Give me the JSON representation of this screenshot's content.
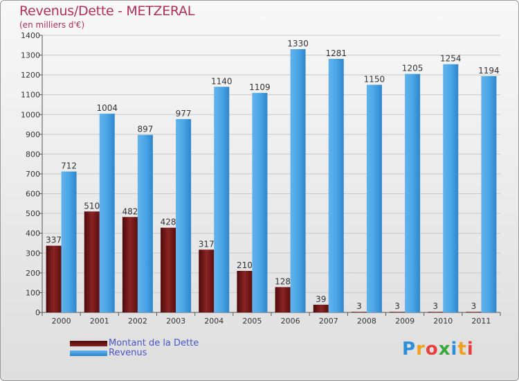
{
  "title": "Revenus/Dette - METZERAL",
  "subtitle": "(en milliers d'€)",
  "logo": {
    "letters": [
      "P",
      "r",
      "o",
      "x",
      "i",
      "t",
      "i"
    ],
    "colors": [
      "#2e8fd8",
      "#f0a020",
      "#e84040",
      "#3aa83a",
      "#2e8fd8",
      "#f0a020",
      "#e84040"
    ]
  },
  "chart_data": {
    "type": "bar",
    "categories": [
      "2000",
      "2001",
      "2002",
      "2003",
      "2004",
      "2005",
      "2006",
      "2007",
      "2008",
      "2009",
      "2010",
      "2011"
    ],
    "series": [
      {
        "name": "Montant de la Dette",
        "values": [
          337,
          510,
          482,
          428,
          317,
          210,
          128,
          39,
          3,
          3,
          3,
          3
        ],
        "color": "#7a1a1a"
      },
      {
        "name": "Revenus",
        "values": [
          712,
          1004,
          897,
          977,
          1140,
          1109,
          1330,
          1281,
          1150,
          1205,
          1254,
          1194
        ],
        "color": "#3d9ce0"
      }
    ],
    "ylim": [
      0,
      1400
    ],
    "yticks": [
      0,
      100,
      200,
      300,
      400,
      500,
      600,
      700,
      800,
      900,
      1000,
      1100,
      1200,
      1300,
      1400
    ],
    "grid": true,
    "legend_position": "bottom-left"
  }
}
